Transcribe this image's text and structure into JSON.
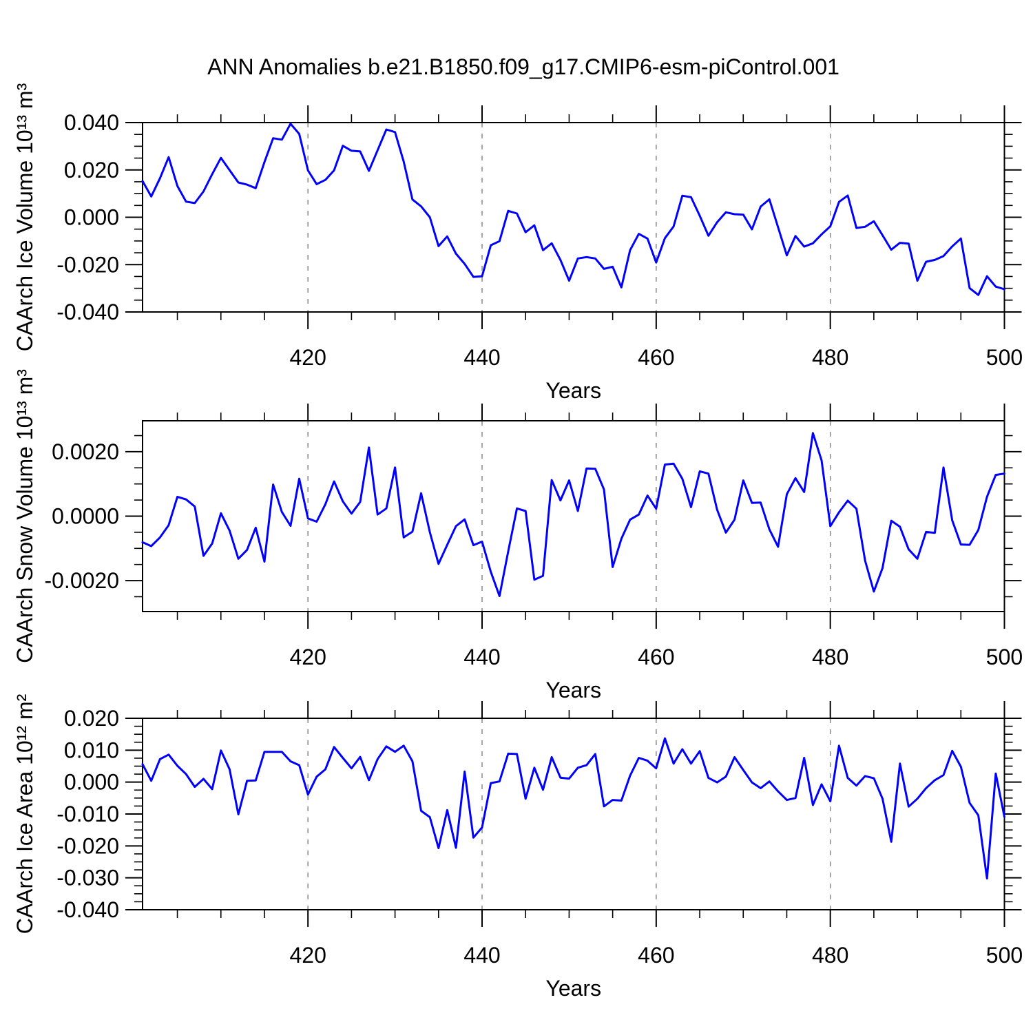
{
  "title": "ANN Anomalies b.e21.B1850.f09_g17.CMIP6-esm-piControl.001",
  "colors": {
    "line": "#0000ff",
    "axis": "#000000",
    "grid": "#888888",
    "text": "#000000"
  },
  "x_axis": {
    "label": "Years",
    "xlim": [
      401,
      500
    ],
    "major_ticks": [
      420,
      440,
      460,
      480,
      500
    ],
    "major_tick_labels": [
      "420",
      "440",
      "460",
      "480",
      "500"
    ],
    "minor_step": 5,
    "gridlines": [
      420,
      440,
      460,
      480
    ]
  },
  "chart_data": [
    {
      "type": "line",
      "id": "ice-volume",
      "ylabel": "CAArch Ice Volume 10¹³ m³",
      "xlabel": "Years",
      "ylim": [
        -0.04,
        0.04
      ],
      "ytick_values": [
        0.04,
        0.02,
        0.0,
        -0.02,
        -0.04
      ],
      "ytick_labels": [
        "0.040",
        "0.020",
        "0.000",
        "-0.020",
        "-0.040"
      ],
      "ytick_minor_step": 0.005,
      "x_start": 401,
      "x_step": 1,
      "values": [
        0.0153,
        0.0088,
        0.0165,
        0.0254,
        0.0132,
        0.0066,
        0.006,
        0.0109,
        0.0182,
        0.0251,
        0.0199,
        0.0147,
        0.0138,
        0.0123,
        0.0233,
        0.0334,
        0.0328,
        0.0395,
        0.0352,
        0.0198,
        0.014,
        0.0158,
        0.0198,
        0.0302,
        0.0281,
        0.0278,
        0.0196,
        0.0283,
        0.0371,
        0.036,
        0.0235,
        0.0075,
        0.0046,
        0.0,
        -0.0122,
        -0.0081,
        -0.0154,
        -0.0197,
        -0.0252,
        -0.0249,
        -0.0118,
        -0.0101,
        0.0027,
        0.0016,
        -0.0063,
        -0.0034,
        -0.0139,
        -0.011,
        -0.018,
        -0.0268,
        -0.0174,
        -0.0168,
        -0.0174,
        -0.0218,
        -0.0209,
        -0.0296,
        -0.0139,
        -0.007,
        -0.009,
        -0.0191,
        -0.0088,
        -0.0039,
        0.0091,
        0.0085,
        0.0006,
        -0.0078,
        -0.0021,
        0.0021,
        0.0013,
        0.0011,
        -0.0051,
        0.0045,
        0.0076,
        -0.0042,
        -0.0161,
        -0.0079,
        -0.0124,
        -0.011,
        -0.0072,
        -0.0038,
        0.0065,
        0.0092,
        -0.0045,
        -0.004,
        -0.0017,
        -0.0076,
        -0.0137,
        -0.0108,
        -0.0111,
        -0.0268,
        -0.0188,
        -0.018,
        -0.0164,
        -0.0123,
        -0.009,
        -0.0299,
        -0.0328,
        -0.0249,
        -0.0293,
        -0.0304
      ]
    },
    {
      "type": "line",
      "id": "snow-volume",
      "ylabel": "CAArch Snow Volume 10¹³ m³",
      "xlabel": "Years",
      "ylim": [
        -0.00296,
        0.00296
      ],
      "ytick_values": [
        0.002,
        0.0,
        -0.002
      ],
      "ytick_labels": [
        "0.0020",
        "0.0000",
        "-0.0020"
      ],
      "ytick_minor_step": 0.0005,
      "x_start": 401,
      "x_step": 1,
      "values": [
        -0.00081,
        -0.00093,
        -0.00066,
        -0.00028,
        0.0006,
        0.00052,
        0.0003,
        -0.00123,
        -0.00085,
        9e-05,
        -0.00045,
        -0.00132,
        -0.00105,
        -0.00036,
        -0.00141,
        0.00098,
        0.00013,
        -0.0003,
        0.00116,
        -7e-05,
        -0.00017,
        0.00037,
        0.00108,
        0.00046,
        8e-05,
        0.00044,
        0.00213,
        5e-05,
        0.00024,
        0.00151,
        -0.00066,
        -0.00048,
        0.00071,
        -0.0005,
        -0.00148,
        -0.00089,
        -0.00031,
        -0.0001,
        -0.0009,
        -0.00079,
        -0.00173,
        -0.00248,
        -0.0011,
        0.00024,
        0.00016,
        -0.00197,
        -0.00185,
        0.00112,
        0.00049,
        0.00111,
        0.00016,
        0.00148,
        0.00147,
        0.00083,
        -0.00158,
        -0.0007,
        -0.00011,
        5e-05,
        0.00064,
        0.00023,
        0.0016,
        0.00163,
        0.00116,
        0.00028,
        0.00139,
        0.00132,
        0.0002,
        -0.00051,
        -0.00011,
        0.00111,
        0.00041,
        0.00042,
        -0.00041,
        -0.00095,
        0.00068,
        0.00118,
        0.00075,
        0.00258,
        0.00173,
        -0.00031,
        0.00012,
        0.00048,
        0.00023,
        -0.00138,
        -0.00234,
        -0.00161,
        -0.00014,
        -0.00033,
        -0.00103,
        -0.00132,
        -0.00049,
        -0.00052,
        0.00151,
        -0.00013,
        -0.00088,
        -0.00089,
        -0.00043,
        0.0006,
        0.00128,
        0.00132
      ]
    },
    {
      "type": "line",
      "id": "ice-area",
      "ylabel": "CAArch Ice Area 10¹² m²",
      "xlabel": "Years",
      "ylim": [
        -0.04,
        0.02
      ],
      "ytick_values": [
        0.02,
        0.01,
        0.0,
        -0.01,
        -0.02,
        -0.03,
        -0.04
      ],
      "ytick_labels": [
        "0.020",
        "0.010",
        "0.000",
        "-0.010",
        "-0.020",
        "-0.030",
        "-0.040"
      ],
      "ytick_minor_step": 0.0025,
      "x_start": 401,
      "x_step": 1,
      "values": [
        0.0056,
        0.0004,
        0.0072,
        0.0086,
        0.0051,
        0.0025,
        -0.0015,
        0.001,
        -0.0022,
        0.0099,
        0.004,
        -0.0101,
        0.0004,
        0.0005,
        0.0095,
        0.0095,
        0.0095,
        0.0065,
        0.0053,
        -0.0039,
        0.0017,
        0.004,
        0.011,
        0.0076,
        0.0043,
        0.0079,
        0.0006,
        0.0072,
        0.0112,
        0.0095,
        0.0114,
        0.0065,
        -0.009,
        -0.011,
        -0.0207,
        -0.0088,
        -0.0206,
        0.0033,
        -0.0174,
        -0.0142,
        -0.0003,
        0.0002,
        0.0089,
        0.0088,
        -0.0052,
        0.0045,
        -0.0024,
        0.0078,
        0.0014,
        0.0011,
        0.0045,
        0.0053,
        0.0088,
        -0.0076,
        -0.0056,
        -0.0058,
        0.002,
        0.0076,
        0.0067,
        0.0043,
        0.0137,
        0.0058,
        0.0103,
        0.0058,
        0.0097,
        0.0013,
        -0.0001,
        0.0017,
        0.0078,
        0.0038,
        -0.0001,
        -0.0019,
        0.0002,
        -0.0029,
        -0.0056,
        -0.005,
        0.0076,
        -0.0072,
        -0.0007,
        -0.006,
        0.0114,
        0.0013,
        -0.0011,
        0.0019,
        0.0012,
        -0.0052,
        -0.0187,
        0.0058,
        -0.0077,
        -0.0052,
        -0.0019,
        0.0006,
        0.0022,
        0.0098,
        0.0048,
        -0.0065,
        -0.0104,
        -0.0302,
        0.0027,
        -0.0109
      ]
    }
  ]
}
